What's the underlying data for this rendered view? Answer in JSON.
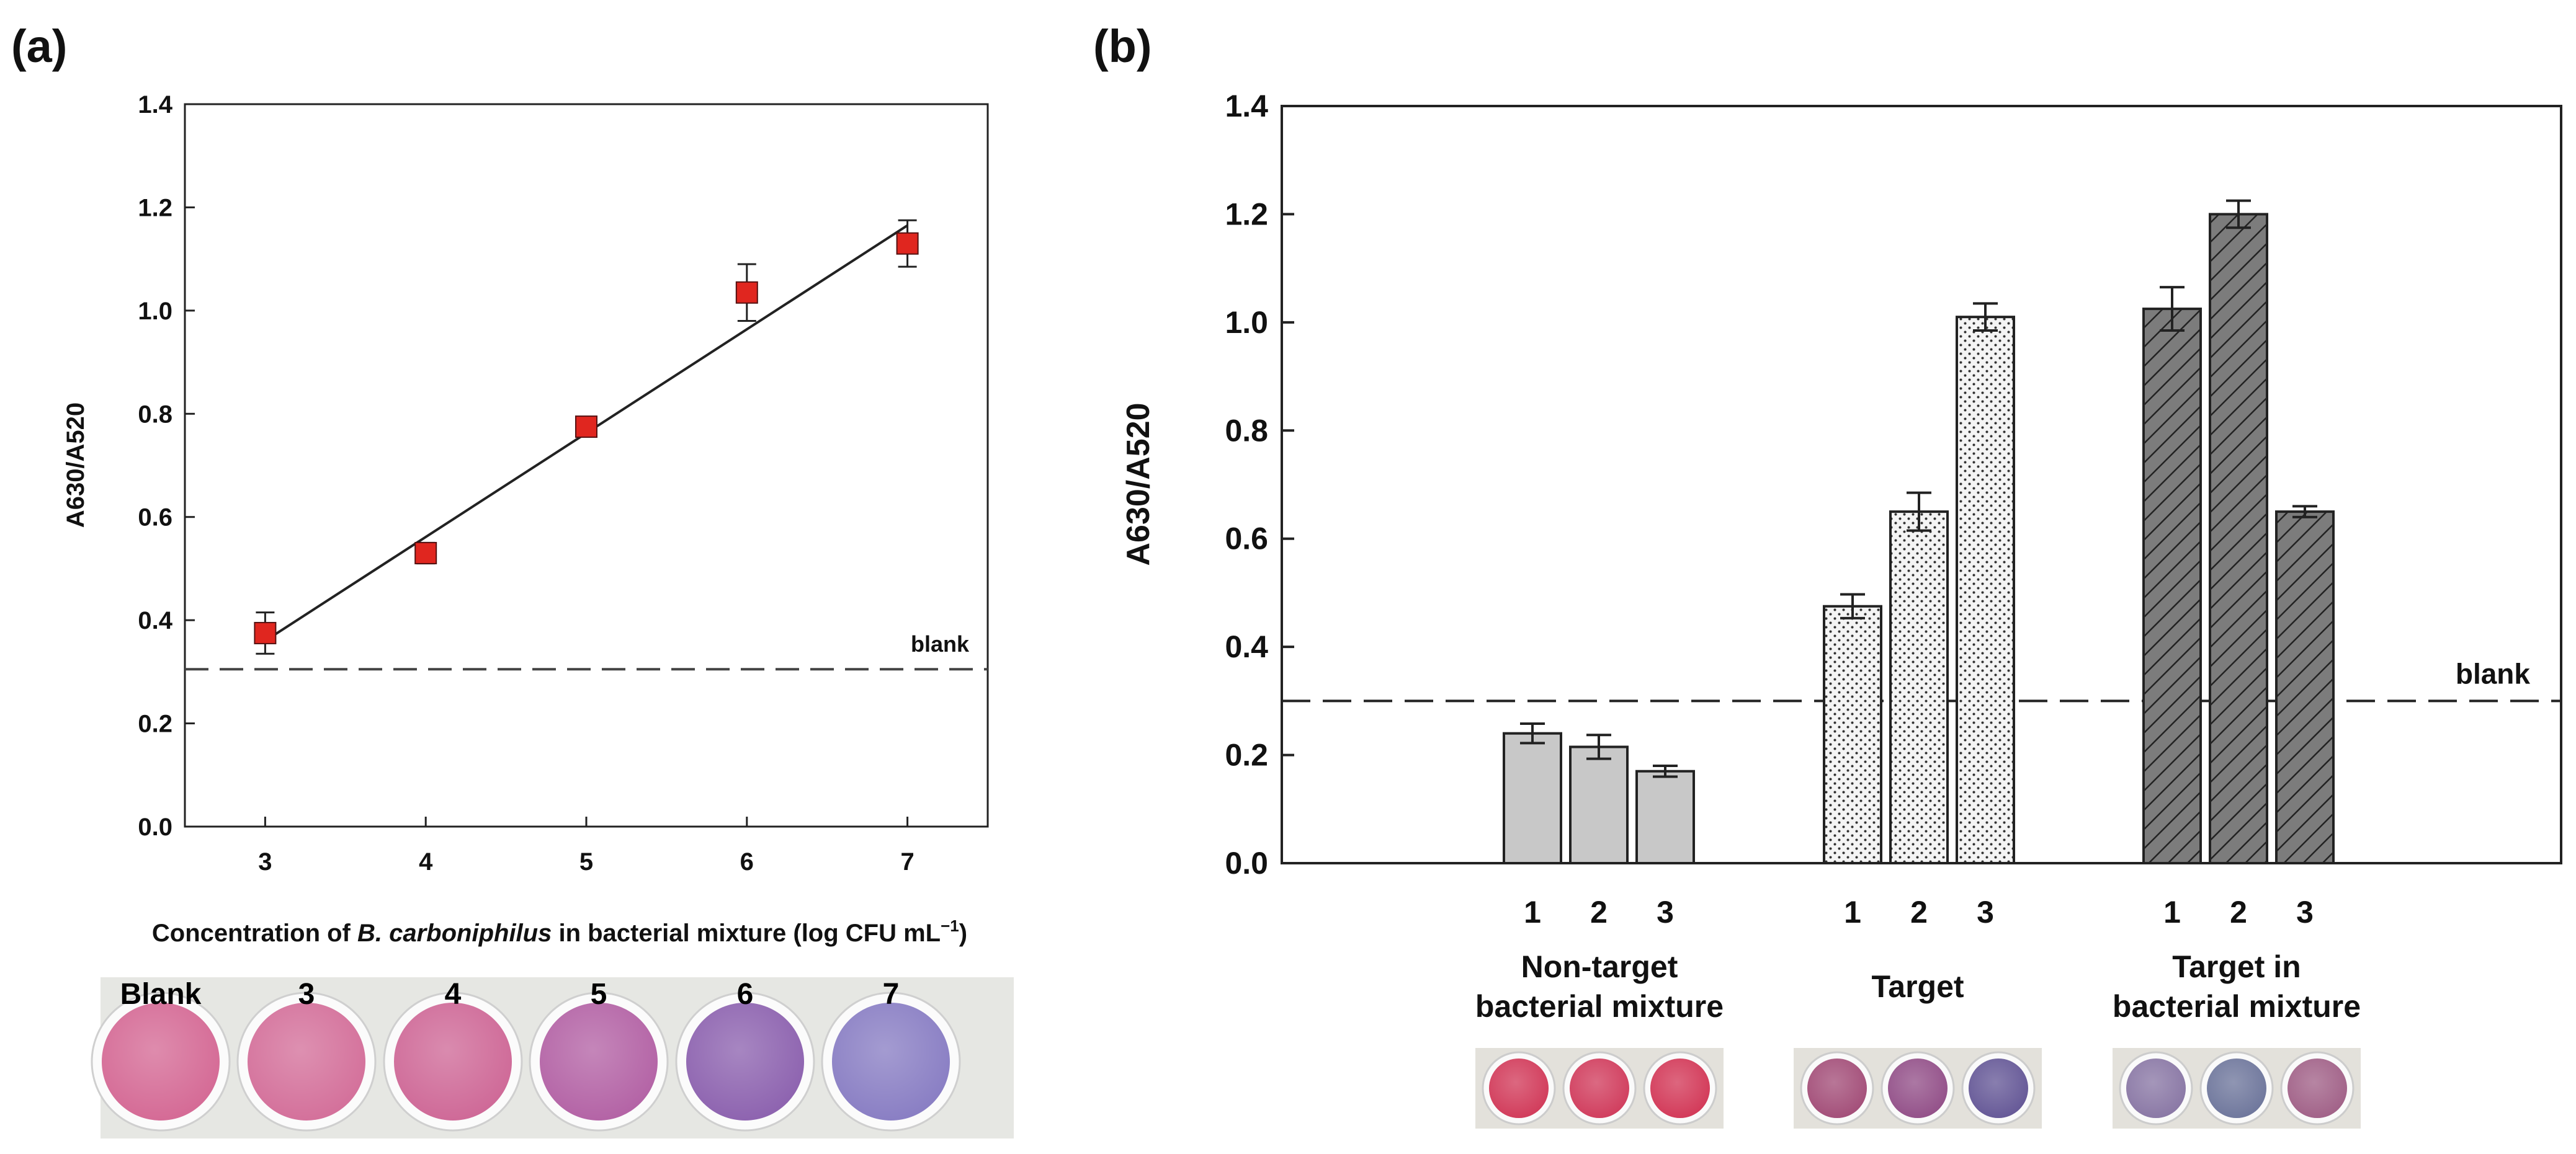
{
  "chart_data": [
    {
      "type": "scatter",
      "panel": "(a)",
      "title": "",
      "xlabel_parts": [
        "Concentration of ",
        "B. carboniphilus",
        " in bacterial mixture (log CFU mL",
        "−1",
        ")"
      ],
      "ylabel": "A630/A520",
      "x_ticks": [
        "3",
        "4",
        "5",
        "6",
        "7"
      ],
      "y_ticks": [
        "0.0",
        "0.2",
        "0.4",
        "0.6",
        "0.8",
        "1.0",
        "1.2",
        "1.4"
      ],
      "xlim": [
        2.5,
        7.5
      ],
      "ylim": [
        0.0,
        1.4
      ],
      "points": [
        {
          "x": 3,
          "y": 0.375,
          "err": 0.04
        },
        {
          "x": 4,
          "y": 0.53,
          "err": 0.02
        },
        {
          "x": 5,
          "y": 0.775,
          "err": 0.01
        },
        {
          "x": 6,
          "y": 1.035,
          "err": 0.055
        },
        {
          "x": 7,
          "y": 1.13,
          "err": 0.045
        }
      ],
      "fit_line": {
        "x": [
          3,
          7
        ],
        "y": [
          0.36,
          1.165
        ]
      },
      "blank_value": 0.305,
      "blank_label": "blank",
      "marker_color": "#e0261f",
      "photo_labels": [
        "Blank",
        "3",
        "4",
        "5",
        "6",
        "7"
      ],
      "photo_colors": [
        "#d56b96",
        "#d4719b",
        "#cf6a98",
        "#b464a6",
        "#8e64b0",
        "#8a7fc4"
      ]
    },
    {
      "type": "bar",
      "panel": "(b)",
      "title": "",
      "ylabel": "A630/A520",
      "y_ticks": [
        "0.0",
        "0.2",
        "0.4",
        "0.6",
        "0.8",
        "1.0",
        "1.2",
        "1.4"
      ],
      "ylim": [
        0.0,
        1.4
      ],
      "blank_value": 0.3,
      "blank_label": "blank",
      "groups": [
        {
          "name_lines": [
            "Non-target",
            "bacterial mixture"
          ],
          "categories": [
            "1",
            "2",
            "3"
          ],
          "values": [
            0.24,
            0.215,
            0.17
          ],
          "errors": [
            0.018,
            0.022,
            0.01
          ],
          "fill": "#c8c8c8",
          "pattern": "solid",
          "photo_colors": [
            "#d23d5c",
            "#d13f5f",
            "#d33b5a"
          ]
        },
        {
          "name_lines": [
            "Target"
          ],
          "categories": [
            "1",
            "2",
            "3"
          ],
          "values": [
            0.475,
            0.65,
            1.01
          ],
          "errors": [
            0.022,
            0.035,
            0.025
          ],
          "fill": "#f2f2f2",
          "pattern": "dots",
          "photo_colors": [
            "#a4507a",
            "#94528a",
            "#675a98"
          ]
        },
        {
          "name_lines": [
            "Target in",
            "bacterial mixture"
          ],
          "categories": [
            "1",
            "2",
            "3"
          ],
          "values": [
            1.025,
            1.2,
            0.65
          ],
          "errors": [
            0.04,
            0.025,
            0.01
          ],
          "fill": "#7c7c7c",
          "pattern": "hatch",
          "photo_colors": [
            "#8b79a6",
            "#70789d",
            "#a26389"
          ]
        }
      ]
    }
  ],
  "panel_labels": [
    "(a)",
    "(b)"
  ]
}
